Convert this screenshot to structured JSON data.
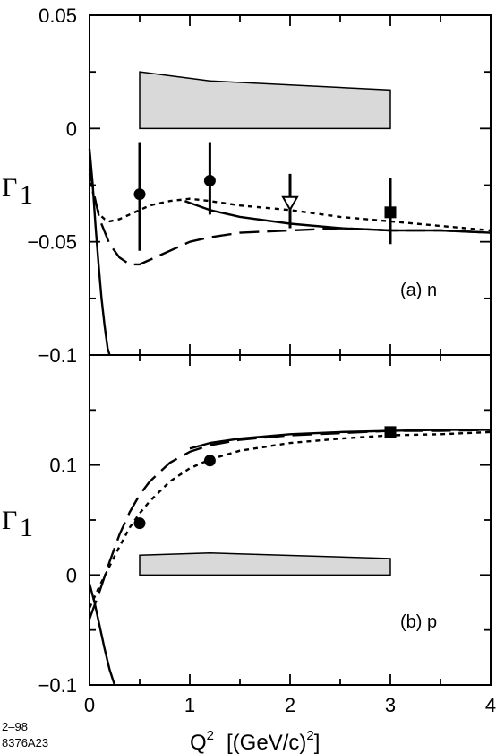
{
  "corner_note": [
    "2–98",
    "8376A23"
  ],
  "chart_data": [
    {
      "type": "line",
      "panel_label": "(a)  n",
      "ylabel": "Γ",
      "ylabel_sub": "1",
      "xlabel": "",
      "xlim": [
        0,
        4
      ],
      "ylim": [
        -0.1,
        0.05
      ],
      "yticks": [
        -0.1,
        -0.05,
        0,
        0.05
      ],
      "ytick_labels": [
        "−0.1",
        "−0.05",
        "0",
        "0.05"
      ],
      "xticks": [
        0,
        1,
        2,
        3,
        4
      ],
      "band": {
        "x": [
          0.5,
          1.2,
          3.0
        ],
        "top": [
          0.025,
          0.021,
          0.017
        ],
        "bottom": 0
      },
      "series": [
        {
          "style": "solid",
          "x": [
            0.0,
            0.03,
            0.06,
            0.09,
            0.12,
            0.15,
            0.18,
            0.2
          ],
          "y": [
            -0.009,
            -0.024,
            -0.043,
            -0.06,
            -0.075,
            -0.087,
            -0.097,
            -0.1
          ]
        },
        {
          "style": "solid",
          "x": [
            0.95,
            1.2,
            1.5,
            2.0,
            2.5,
            3.0,
            3.5,
            4.0
          ],
          "y": [
            -0.032,
            -0.036,
            -0.039,
            -0.042,
            -0.044,
            -0.045,
            -0.045,
            -0.046
          ]
        },
        {
          "style": "dashed",
          "x": [
            0.0,
            0.05,
            0.1,
            0.2,
            0.3,
            0.4,
            0.5,
            0.6,
            0.8,
            1.0,
            1.2,
            1.5,
            2.0,
            2.5,
            3.0,
            3.5,
            4.0
          ],
          "y": [
            -0.018,
            -0.03,
            -0.04,
            -0.051,
            -0.057,
            -0.06,
            -0.06,
            -0.058,
            -0.054,
            -0.05,
            -0.048,
            -0.046,
            -0.045,
            -0.044,
            -0.045,
            -0.045,
            -0.046
          ]
        },
        {
          "style": "dotted",
          "x": [
            0.0,
            0.05,
            0.1,
            0.15,
            0.2,
            0.3,
            0.4,
            0.5,
            0.6,
            0.8,
            1.0,
            1.2,
            1.5,
            2.0,
            2.5,
            3.0,
            3.5,
            4.0
          ],
          "y": [
            -0.02,
            -0.032,
            -0.038,
            -0.04,
            -0.041,
            -0.04,
            -0.038,
            -0.036,
            -0.034,
            -0.032,
            -0.031,
            -0.032,
            -0.034,
            -0.036,
            -0.039,
            -0.041,
            -0.043,
            -0.045
          ]
        }
      ],
      "points": [
        {
          "x": 0.5,
          "y": -0.029,
          "yerr_low": -0.054,
          "yerr_high": -0.006,
          "marker": "circle"
        },
        {
          "x": 1.2,
          "y": -0.023,
          "yerr_low": -0.038,
          "yerr_high": -0.006,
          "marker": "circle"
        },
        {
          "x": 2.0,
          "y": -0.033,
          "yerr_low": -0.044,
          "yerr_high": -0.02,
          "marker": "triangle-open"
        },
        {
          "x": 3.0,
          "y": -0.037,
          "yerr_low": -0.051,
          "yerr_high": -0.022,
          "marker": "square"
        }
      ]
    },
    {
      "type": "line",
      "panel_label": "(b)  p",
      "ylabel": "Γ",
      "ylabel_sub": "1",
      "xlabel": "Q² [(GeV/c)²]",
      "xlim": [
        0,
        4
      ],
      "ylim": [
        -0.1,
        0.2
      ],
      "yticks": [
        -0.1,
        0,
        0.1
      ],
      "ytick_labels": [
        "−0.1",
        "0",
        "0.1"
      ],
      "xticks": [
        0,
        1,
        2,
        3,
        4
      ],
      "xtick_labels": [
        "0",
        "1",
        "2",
        "3",
        "4"
      ],
      "band": {
        "x": [
          0.5,
          1.2,
          3.0
        ],
        "top": [
          0.018,
          0.02,
          0.015
        ],
        "bottom": 0
      },
      "series": [
        {
          "style": "solid",
          "x": [
            0.0,
            0.05,
            0.1,
            0.15,
            0.2,
            0.25
          ],
          "y": [
            -0.008,
            -0.025,
            -0.046,
            -0.067,
            -0.086,
            -0.1
          ]
        },
        {
          "style": "solid",
          "x": [
            1.0,
            1.2,
            1.5,
            2.0,
            2.5,
            3.0,
            3.5,
            4.0
          ],
          "y": [
            0.115,
            0.12,
            0.124,
            0.128,
            0.13,
            0.131,
            0.132,
            0.132
          ]
        },
        {
          "style": "dashed",
          "x": [
            0.0,
            0.1,
            0.2,
            0.3,
            0.4,
            0.5,
            0.6,
            0.8,
            1.0,
            1.2,
            1.5,
            2.0,
            2.5,
            3.0,
            3.5,
            4.0
          ],
          "y": [
            -0.04,
            -0.015,
            0.012,
            0.037,
            0.057,
            0.073,
            0.085,
            0.102,
            0.112,
            0.118,
            0.123,
            0.127,
            0.129,
            0.131,
            0.131,
            0.132
          ]
        },
        {
          "style": "dotted",
          "x": [
            0.0,
            0.1,
            0.2,
            0.3,
            0.4,
            0.5,
            0.6,
            0.8,
            1.0,
            1.2,
            1.5,
            2.0,
            2.5,
            3.0,
            3.5,
            4.0
          ],
          "y": [
            -0.03,
            -0.01,
            0.008,
            0.026,
            0.043,
            0.056,
            0.067,
            0.085,
            0.097,
            0.105,
            0.113,
            0.12,
            0.124,
            0.127,
            0.128,
            0.13
          ]
        }
      ],
      "points": [
        {
          "x": 0.5,
          "y": 0.047,
          "marker": "circle"
        },
        {
          "x": 1.2,
          "y": 0.104,
          "marker": "circle"
        },
        {
          "x": 3.0,
          "y": 0.13,
          "marker": "square"
        }
      ]
    }
  ]
}
